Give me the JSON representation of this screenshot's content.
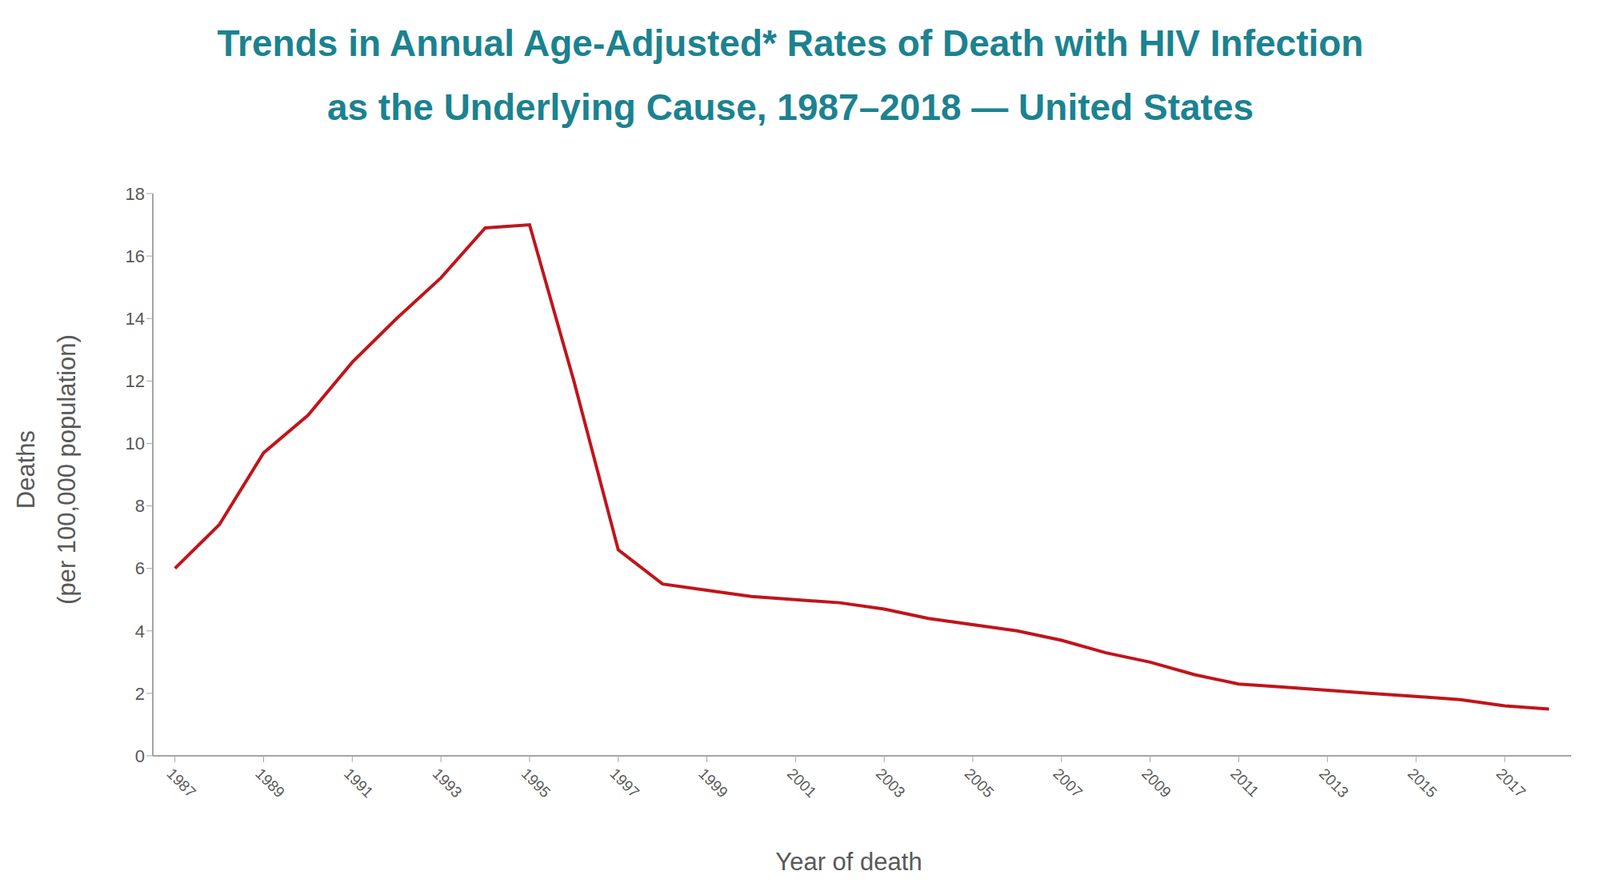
{
  "chart_data": {
    "type": "line",
    "title": [
      "Trends in Annual Age-Adjusted* Rates of Death with HIV Infection",
      "as the Underlying Cause, 1987–2018 — United States"
    ],
    "x_label": "Year of death",
    "y_label": [
      "Deaths",
      "(per 100,000 population)"
    ],
    "x": [
      1987,
      1988,
      1989,
      1990,
      1991,
      1992,
      1993,
      1994,
      1995,
      1996,
      1997,
      1998,
      1999,
      2000,
      2001,
      2002,
      2003,
      2004,
      2005,
      2006,
      2007,
      2008,
      2009,
      2010,
      2011,
      2012,
      2013,
      2014,
      2015,
      2016,
      2017,
      2018
    ],
    "values": [
      6.0,
      7.4,
      9.7,
      10.9,
      12.6,
      14.0,
      15.3,
      16.9,
      17.0,
      12.0,
      6.6,
      5.5,
      5.3,
      5.1,
      5.0,
      4.9,
      4.7,
      4.4,
      4.2,
      4.0,
      3.7,
      3.3,
      3.0,
      2.6,
      2.3,
      2.2,
      2.1,
      2.0,
      1.9,
      1.8,
      1.6,
      1.5
    ],
    "color": "#c0151b",
    "xlim": [
      1986.5,
      2018.5
    ],
    "xticks": [
      1987,
      1989,
      1991,
      1993,
      1995,
      1997,
      1999,
      2001,
      2003,
      2005,
      2007,
      2009,
      2011,
      2013,
      2015,
      2017
    ],
    "ylim": [
      0,
      18
    ],
    "yticks": [
      0,
      2,
      4,
      6,
      8,
      10,
      12,
      14,
      16,
      18
    ],
    "grid": false
  }
}
